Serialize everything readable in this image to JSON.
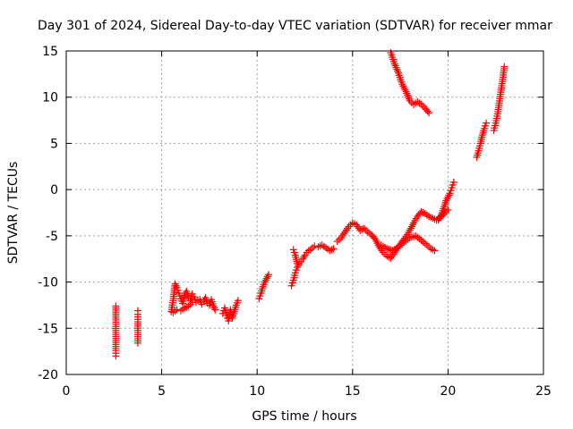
{
  "chart_data": {
    "type": "scatter",
    "title": "Day 301 of 2024, Sidereal Day-to-day VTEC variation (SDTVAR) for receiver mmar",
    "xlabel": "GPS time / hours",
    "ylabel": "SDTVAR / TECUs",
    "xlim": [
      0,
      25
    ],
    "ylim": [
      -20,
      15
    ],
    "xticks": [
      0,
      5,
      10,
      15,
      20,
      25
    ],
    "yticks": [
      -20,
      -15,
      -10,
      -5,
      0,
      5,
      10,
      15
    ],
    "xtick_labels": [
      "0",
      "5",
      "10",
      "15",
      "20",
      "25"
    ],
    "ytick_labels": [
      "-20",
      "-15",
      "-10",
      "-5",
      "0",
      "5",
      "10",
      "15"
    ],
    "grid": true,
    "marker": "+",
    "color": "#ff0000",
    "series": [
      {
        "name": "SDTVAR",
        "segments": [
          {
            "x": [
              2.6,
              2.6,
              2.6,
              2.6,
              2.6,
              2.6
            ],
            "y": [
              -12.6,
              -13.9,
              -14.1,
              -14.8,
              -17.4,
              -18.0
            ]
          },
          {
            "x": [
              3.75,
              3.75,
              3.75,
              3.75
            ],
            "y": [
              -13.1,
              -13.5,
              -14.3,
              -16.6
            ]
          },
          {
            "x": [
              5.5,
              5.6,
              5.7,
              5.8,
              5.9,
              6.0,
              6.1,
              6.2,
              6.3,
              6.4,
              6.5,
              6.6,
              6.7,
              6.8,
              6.9,
              7.0,
              7.1,
              7.2,
              7.3,
              7.4,
              7.5,
              7.6,
              7.7,
              7.8
            ],
            "y": [
              -13.2,
              -12.0,
              -10.2,
              -10.6,
              -11.2,
              -11.8,
              -12.3,
              -11.4,
              -11.0,
              -11.7,
              -12.0,
              -11.3,
              -11.6,
              -12.2,
              -12.0,
              -11.9,
              -12.4,
              -12.1,
              -11.7,
              -12.3,
              -12.5,
              -11.9,
              -12.6,
              -13.0
            ]
          },
          {
            "x": [
              5.6,
              5.8,
              6.0,
              6.2,
              6.4,
              6.6
            ],
            "y": [
              -13.3,
              -13.0,
              -13.1,
              -12.8,
              -12.6,
              -12.2
            ]
          },
          {
            "x": [
              8.2,
              8.3,
              8.4,
              8.5,
              8.6,
              8.7,
              8.8,
              8.9,
              9.0
            ],
            "y": [
              -13.4,
              -12.8,
              -13.6,
              -14.2,
              -13.0,
              -13.9,
              -13.2,
              -12.5,
              -12.0
            ]
          },
          {
            "x": [
              10.1,
              10.2,
              10.3,
              10.4,
              10.5,
              10.6
            ],
            "y": [
              -11.8,
              -11.2,
              -10.5,
              -10.0,
              -9.6,
              -9.2
            ]
          },
          {
            "x": [
              11.8,
              11.9,
              12.0,
              12.1,
              12.2,
              12.3,
              12.4,
              12.5,
              12.6,
              12.7,
              12.8,
              12.9,
              13.0,
              13.2,
              13.4,
              13.6,
              13.8,
              14.0
            ],
            "y": [
              -10.4,
              -9.8,
              -9.0,
              -8.4,
              -8.0,
              -7.8,
              -7.5,
              -7.1,
              -6.8,
              -6.6,
              -6.5,
              -6.3,
              -6.1,
              -6.2,
              -6.0,
              -6.3,
              -6.6,
              -6.4
            ]
          },
          {
            "x": [
              11.9,
              12.0,
              12.1
            ],
            "y": [
              -6.5,
              -7.1,
              -8.0
            ]
          },
          {
            "x": [
              14.2,
              14.4,
              14.6,
              14.8,
              15.0,
              15.2,
              15.4,
              15.6,
              15.8,
              16.0,
              16.2,
              16.4,
              16.6,
              16.8,
              17.0,
              17.2,
              17.4,
              17.6,
              17.8,
              18.0,
              18.2,
              18.4,
              18.6,
              18.8,
              19.0,
              19.2,
              19.4,
              19.6,
              19.8,
              20.0
            ],
            "y": [
              -5.6,
              -5.2,
              -4.6,
              -4.0,
              -3.6,
              -3.8,
              -4.4,
              -4.2,
              -4.6,
              -4.9,
              -5.4,
              -6.2,
              -6.8,
              -7.2,
              -7.4,
              -6.8,
              -6.2,
              -5.6,
              -5.1,
              -4.4,
              -3.6,
              -2.9,
              -2.4,
              -2.6,
              -2.9,
              -3.1,
              -3.3,
              -3.0,
              -2.6,
              -2.2
            ]
          },
          {
            "x": [
              16.5,
              16.8,
              17.1,
              17.4,
              17.7,
              18.0,
              18.3,
              18.6,
              18.9,
              19.1,
              19.3
            ],
            "y": [
              -6.0,
              -6.4,
              -6.6,
              -6.2,
              -5.7,
              -5.2,
              -5.0,
              -5.5,
              -6.0,
              -6.4,
              -6.6
            ]
          },
          {
            "x": [
              19.5,
              19.7,
              19.9,
              20.1,
              20.2,
              20.3
            ],
            "y": [
              -3.3,
              -2.5,
              -1.2,
              -0.4,
              0.2,
              0.8
            ]
          },
          {
            "x": [
              17.0,
              17.2,
              17.4,
              17.6,
              17.8,
              18.0,
              18.2,
              18.4,
              18.6,
              18.8,
              19.0
            ],
            "y": [
              14.8,
              13.6,
              12.6,
              11.4,
              10.6,
              9.6,
              9.2,
              9.5,
              9.2,
              8.8,
              8.3
            ]
          },
          {
            "x": [
              21.5,
              21.6,
              21.7,
              21.8,
              21.9,
              22.0
            ],
            "y": [
              3.5,
              4.2,
              5.0,
              5.9,
              6.6,
              7.2
            ]
          },
          {
            "x": [
              22.4,
              22.5,
              22.6,
              22.7,
              22.8,
              22.9,
              22.95
            ],
            "y": [
              6.4,
              7.2,
              8.2,
              9.6,
              11.0,
              12.4,
              13.3
            ]
          }
        ]
      }
    ]
  }
}
